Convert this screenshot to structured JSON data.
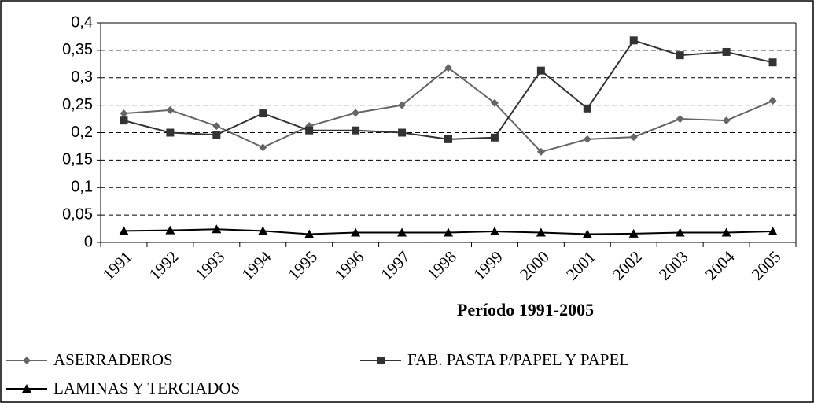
{
  "chart_data": {
    "type": "line",
    "x_label": "Período 1991-2005",
    "categories": [
      "1991",
      "1992",
      "1993",
      "1994",
      "1995",
      "1996",
      "1997",
      "1998",
      "1999",
      "2000",
      "2001",
      "2002",
      "2003",
      "2004",
      "2005"
    ],
    "series": [
      {
        "name": "ASERRADEROS",
        "color": "#666666",
        "marker": "diamond",
        "values": [
          0.235,
          0.241,
          0.212,
          0.173,
          0.212,
          0.236,
          0.25,
          0.318,
          0.254,
          0.165,
          0.188,
          0.192,
          0.225,
          0.222,
          0.258
        ]
      },
      {
        "name": "FAB. PASTA P/PAPEL Y PAPEL",
        "color": "#333333",
        "marker": "square",
        "values": [
          0.222,
          0.2,
          0.196,
          0.235,
          0.204,
          0.204,
          0.2,
          0.188,
          0.191,
          0.313,
          0.244,
          0.368,
          0.341,
          0.347,
          0.328
        ]
      },
      {
        "name": "LAMINAS Y TERCIADOS",
        "color": "#000000",
        "marker": "triangle",
        "values": [
          0.021,
          0.022,
          0.024,
          0.021,
          0.015,
          0.018,
          0.018,
          0.018,
          0.02,
          0.018,
          0.015,
          0.016,
          0.018,
          0.018,
          0.02
        ]
      }
    ],
    "ylim": [
      0,
      0.4
    ],
    "yticks": [
      0,
      {
        "value": 0.05,
        "label": "0,05"
      },
      {
        "value": 0.1,
        "label": "0,1"
      },
      {
        "value": 0.15,
        "label": "0,15"
      },
      {
        "value": 0.2,
        "label": "0,2"
      },
      {
        "value": 0.25,
        "label": "0,25"
      },
      {
        "value": 0.3,
        "label": "0,3"
      },
      {
        "value": 0.35,
        "label": "0,35"
      },
      {
        "value": 0.4,
        "label": "0,4"
      }
    ],
    "grid": true,
    "legend": "bottom"
  }
}
